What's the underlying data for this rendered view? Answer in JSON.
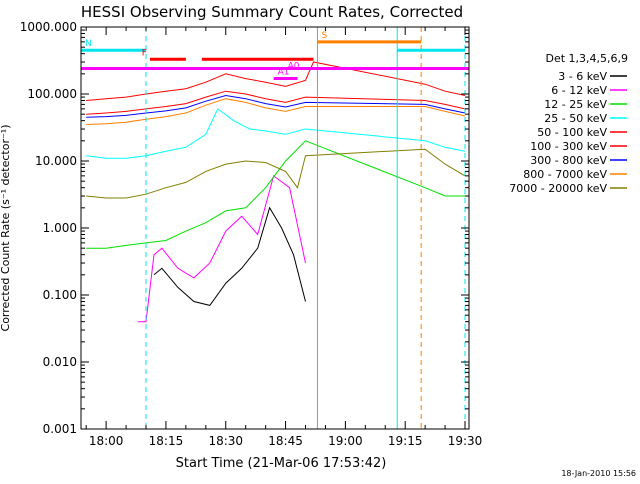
{
  "chart_data": {
    "type": "line",
    "title": "HESSI Observing Summary Count Rates, Corrected",
    "xlabel": "Start Time (21-Mar-06 17:53:42)",
    "ylabel": "Corrected Count Rate (s⁻¹ detector⁻¹)",
    "y_scale": "log",
    "xlim": [
      "17:53:42",
      "19:31:00"
    ],
    "ylim": [
      0.001,
      1000
    ],
    "x_ticks": [
      "18:00",
      "18:15",
      "18:30",
      "18:45",
      "19:00",
      "19:15",
      "19:30"
    ],
    "y_ticks": [
      "0.001",
      "0.010",
      "0.100",
      "1.000",
      "10.000",
      "100.000",
      "1000.000"
    ],
    "timestamp": "18-Jan-2010 15:56",
    "legend_title": "Det 1,3,4,5,6,9",
    "legend_position": "right",
    "series": [
      {
        "name": "3 - 6 keV",
        "color": "#000000",
        "x": [
          "18:12",
          "18:14",
          "18:18",
          "18:22",
          "18:26",
          "18:30",
          "18:34",
          "18:38",
          "18:41",
          "18:44",
          "18:47",
          "18:50"
        ],
        "values": [
          0.2,
          0.25,
          0.13,
          0.08,
          0.07,
          0.15,
          0.25,
          0.5,
          2.0,
          1.0,
          0.4,
          0.08
        ]
      },
      {
        "name": "6 - 12 keV",
        "color": "#ff00ff",
        "x": [
          "18:08",
          "18:10",
          "18:12",
          "18:14",
          "18:18",
          "18:22",
          "18:26",
          "18:30",
          "18:34",
          "18:38",
          "18:42",
          "18:46",
          "18:50"
        ],
        "values": [
          0.04,
          0.04,
          0.4,
          0.5,
          0.25,
          0.18,
          0.3,
          0.9,
          1.5,
          0.8,
          6.0,
          4.0,
          0.3
        ]
      },
      {
        "name": "12 - 25 keV",
        "color": "#00e000",
        "x": [
          "17:55",
          "18:00",
          "18:05",
          "18:10",
          "18:15",
          "18:20",
          "18:25",
          "18:30",
          "18:35",
          "18:40",
          "18:45",
          "18:50",
          "19:20",
          "19:25",
          "19:30"
        ],
        "values": [
          0.5,
          0.5,
          0.55,
          0.6,
          0.65,
          0.9,
          1.2,
          1.8,
          2.0,
          4.0,
          10.0,
          20.0,
          4.0,
          3.0,
          3.0
        ]
      },
      {
        "name": "25 - 50 keV",
        "color": "#00ffff",
        "x": [
          "17:55",
          "18:00",
          "18:05",
          "18:10",
          "18:15",
          "18:20",
          "18:25",
          "18:28",
          "18:32",
          "18:36",
          "18:40",
          "18:45",
          "18:50",
          "19:20",
          "19:25",
          "19:30"
        ],
        "values": [
          12.0,
          11.0,
          11.0,
          12.0,
          14.0,
          16.0,
          25.0,
          60.0,
          40.0,
          30.0,
          28.0,
          25.0,
          30.0,
          20.0,
          16.0,
          14.0
        ]
      },
      {
        "name": "50 - 100 keV",
        "color": "#ff0000",
        "x": [
          "17:55",
          "18:00",
          "18:05",
          "18:10",
          "18:15",
          "18:20",
          "18:25",
          "18:30",
          "18:35",
          "18:40",
          "18:45",
          "18:50",
          "18:52",
          "19:20",
          "19:25",
          "19:30"
        ],
        "values": [
          80.0,
          85.0,
          90.0,
          100.0,
          110.0,
          120.0,
          150.0,
          200.0,
          170.0,
          150.0,
          130.0,
          160.0,
          300.0,
          140.0,
          110.0,
          95.0
        ]
      },
      {
        "name": "100 - 300 keV",
        "color": "#ff0000",
        "x": [
          "17:55",
          "18:00",
          "18:05",
          "18:10",
          "18:15",
          "18:20",
          "18:25",
          "18:30",
          "18:35",
          "18:40",
          "18:45",
          "18:50",
          "19:20",
          "19:25",
          "19:30"
        ],
        "values": [
          50.0,
          52.0,
          55.0,
          60.0,
          65.0,
          72.0,
          90.0,
          110.0,
          100.0,
          85.0,
          75.0,
          90.0,
          80.0,
          70.0,
          60.0
        ]
      },
      {
        "name": "300 - 800 keV",
        "color": "#0000ff",
        "x": [
          "17:55",
          "18:00",
          "18:05",
          "18:10",
          "18:15",
          "18:20",
          "18:25",
          "18:30",
          "18:35",
          "18:40",
          "18:45",
          "18:50",
          "19:20",
          "19:25",
          "19:30"
        ],
        "values": [
          45.0,
          46.0,
          48.0,
          52.0,
          56.0,
          62.0,
          78.0,
          95.0,
          85.0,
          72.0,
          64.0,
          75.0,
          70.0,
          60.0,
          52.0
        ]
      },
      {
        "name": "800 - 7000 keV",
        "color": "#ff8000",
        "x": [
          "17:55",
          "18:00",
          "18:05",
          "18:10",
          "18:15",
          "18:20",
          "18:25",
          "18:30",
          "18:35",
          "18:40",
          "18:45",
          "18:50",
          "19:20",
          "19:25",
          "19:30"
        ],
        "values": [
          35.0,
          36.0,
          38.0,
          42.0,
          46.0,
          52.0,
          68.0,
          85.0,
          75.0,
          62.0,
          55.0,
          65.0,
          65.0,
          55.0,
          47.0
        ]
      },
      {
        "name": "7000 - 20000 keV",
        "color": "#808000",
        "x": [
          "17:55",
          "18:00",
          "18:05",
          "18:10",
          "18:15",
          "18:20",
          "18:25",
          "18:30",
          "18:35",
          "18:40",
          "18:45",
          "18:48",
          "18:50",
          "19:20",
          "19:25",
          "19:30"
        ],
        "values": [
          3.0,
          2.8,
          2.8,
          3.2,
          4.0,
          4.8,
          7.0,
          9.0,
          10.0,
          9.5,
          7.0,
          4.0,
          12.0,
          15.0,
          9.0,
          6.0
        ]
      }
    ],
    "annotations": [
      {
        "label": "N",
        "color": "#00e5ee",
        "x_start": "17:53:42",
        "x_end": "18:10",
        "y": 450
      },
      {
        "label": "",
        "color": "#00e5ee",
        "x_start": "19:13",
        "x_end": "19:30",
        "y": 450
      },
      {
        "label": "S",
        "color": "#ff8000",
        "x_start": "18:53",
        "x_end": "19:19",
        "y": 600
      },
      {
        "label": "F",
        "color": "#ff0000",
        "segments": [
          [
            "18:11",
            "18:20"
          ],
          [
            "18:24",
            "18:52"
          ]
        ],
        "y": 330
      },
      {
        "label": "",
        "color": "#ff00ff",
        "x_start": "17:53:42",
        "x_end": "19:31",
        "y": 240
      },
      {
        "label": "A1",
        "color": "#ff00ff",
        "x_start": "18:42",
        "x_end": "18:48",
        "y": 170
      },
      {
        "label": "A0",
        "color": "#ff00ff",
        "x": "18:47",
        "y": 210
      }
    ],
    "vlines": [
      {
        "time": "17:53:42",
        "color": "#00e5ee",
        "style": "solid"
      },
      {
        "time": "18:10",
        "color": "#00e5ee",
        "style": "dashed"
      },
      {
        "time": "18:53",
        "color": "#ff8000",
        "style": "solid"
      },
      {
        "time": "19:13",
        "color": "#00e5ee",
        "style": "solid"
      },
      {
        "time": "19:19",
        "color": "#ff8000",
        "style": "dashed"
      },
      {
        "time": "19:30",
        "color": "#00e5ee",
        "style": "dashed"
      }
    ]
  }
}
